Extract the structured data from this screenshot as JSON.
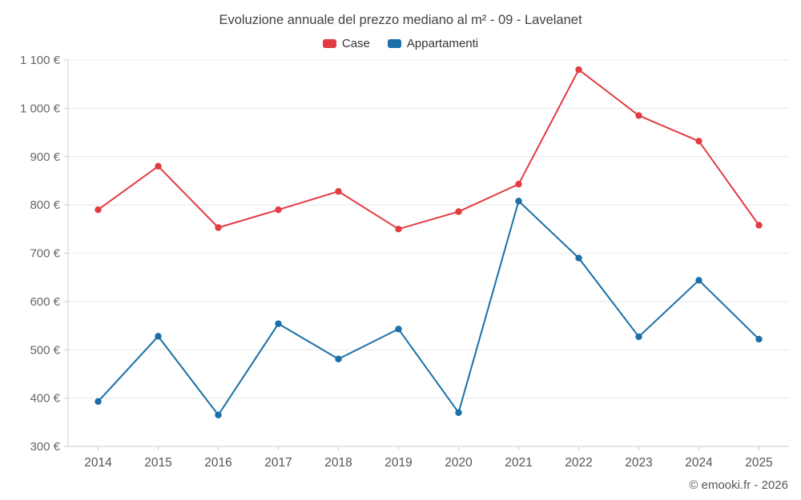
{
  "title": "Evoluzione annuale del prezzo mediano al m² - 09 - Lavelanet",
  "footer": "© emooki.fr - 2026",
  "legend": {
    "case_label": "Case",
    "appartamenti_label": "Appartamenti"
  },
  "colors": {
    "case": "#e23b41",
    "appartamenti": "#1a6fa8",
    "grid": "#e8e8e8",
    "axis": "#cccccc",
    "tick_text": "#666666",
    "year_text": "#555555"
  },
  "chart_data": {
    "type": "line",
    "title": "Evoluzione annuale del prezzo mediano al m² - 09 - Lavelanet",
    "categories": [
      "2014",
      "2015",
      "2016",
      "2017",
      "2018",
      "2019",
      "2020",
      "2021",
      "2022",
      "2023",
      "2024",
      "2025"
    ],
    "series": [
      {
        "name": "Case",
        "color": "#e23b41",
        "values": [
          790,
          880,
          753,
          790,
          828,
          750,
          786,
          843,
          1080,
          985,
          932,
          758
        ]
      },
      {
        "name": "Appartamenti",
        "color": "#1a6fa8",
        "values": [
          393,
          528,
          365,
          554,
          481,
          543,
          370,
          808,
          690,
          527,
          644,
          522
        ]
      }
    ],
    "ylim": [
      300,
      1100
    ],
    "ytick_step": 100,
    "ytick_labels": [
      "300 €",
      "400 €",
      "500 €",
      "600 €",
      "700 €",
      "800 €",
      "900 €",
      "1 000 €",
      "1 100 €"
    ],
    "xlabel": "",
    "ylabel": "",
    "grid": "horizontal",
    "legend_position": "top",
    "markers": true
  }
}
